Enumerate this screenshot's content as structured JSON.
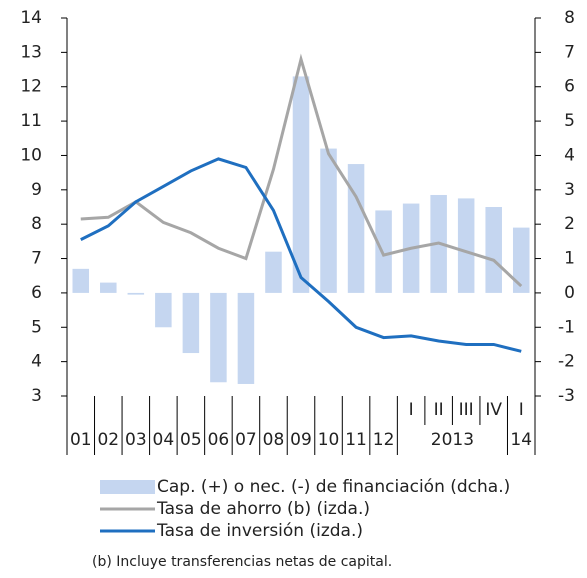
{
  "chart_data": {
    "type": "bar-line",
    "categories": [
      "01",
      "02",
      "03",
      "04",
      "05",
      "06",
      "07",
      "08",
      "09",
      "10",
      "11",
      "12",
      "I",
      "II",
      "III",
      "IV",
      "I"
    ],
    "group_labels": [
      "2013",
      "14"
    ],
    "series": [
      {
        "name": "Cap. (+) o nec. (-) de financiación  (dcha.)",
        "type": "bar",
        "axis": "y2",
        "color": "#c5d6f0",
        "values": [
          0.7,
          0.3,
          -0.05,
          -1.0,
          -1.75,
          -2.6,
          -2.65,
          1.2,
          6.3,
          4.2,
          3.75,
          2.4,
          2.6,
          2.85,
          2.75,
          2.5,
          1.9
        ]
      },
      {
        "name": "Tasa de ahorro (b)  (izda.)",
        "type": "line",
        "color": "#a6a6a6",
        "values": [
          8.15,
          8.2,
          8.65,
          8.05,
          7.75,
          7.3,
          7.0,
          9.6,
          12.8,
          10.05,
          8.8,
          7.1,
          7.3,
          7.45,
          7.2,
          6.95,
          6.2
        ]
      },
      {
        "name": "Tasa de inversión  (izda.)",
        "type": "line",
        "color": "#1f6fc0",
        "values": [
          7.55,
          7.95,
          8.65,
          9.1,
          9.55,
          9.9,
          9.65,
          8.4,
          6.45,
          5.75,
          5.0,
          4.7,
          4.75,
          4.6,
          4.5,
          4.5,
          4.3
        ]
      }
    ],
    "ylim": [
      3,
      14
    ],
    "yticks": [
      3,
      4,
      5,
      6,
      7,
      8,
      9,
      10,
      11,
      12,
      13,
      14
    ],
    "y2lim": [
      -3,
      8
    ],
    "y2ticks": [
      -3,
      -2,
      -1,
      0,
      1,
      2,
      3,
      4,
      5,
      6,
      7,
      8
    ],
    "footnote": "(b) Incluye transferencias netas de capital."
  }
}
